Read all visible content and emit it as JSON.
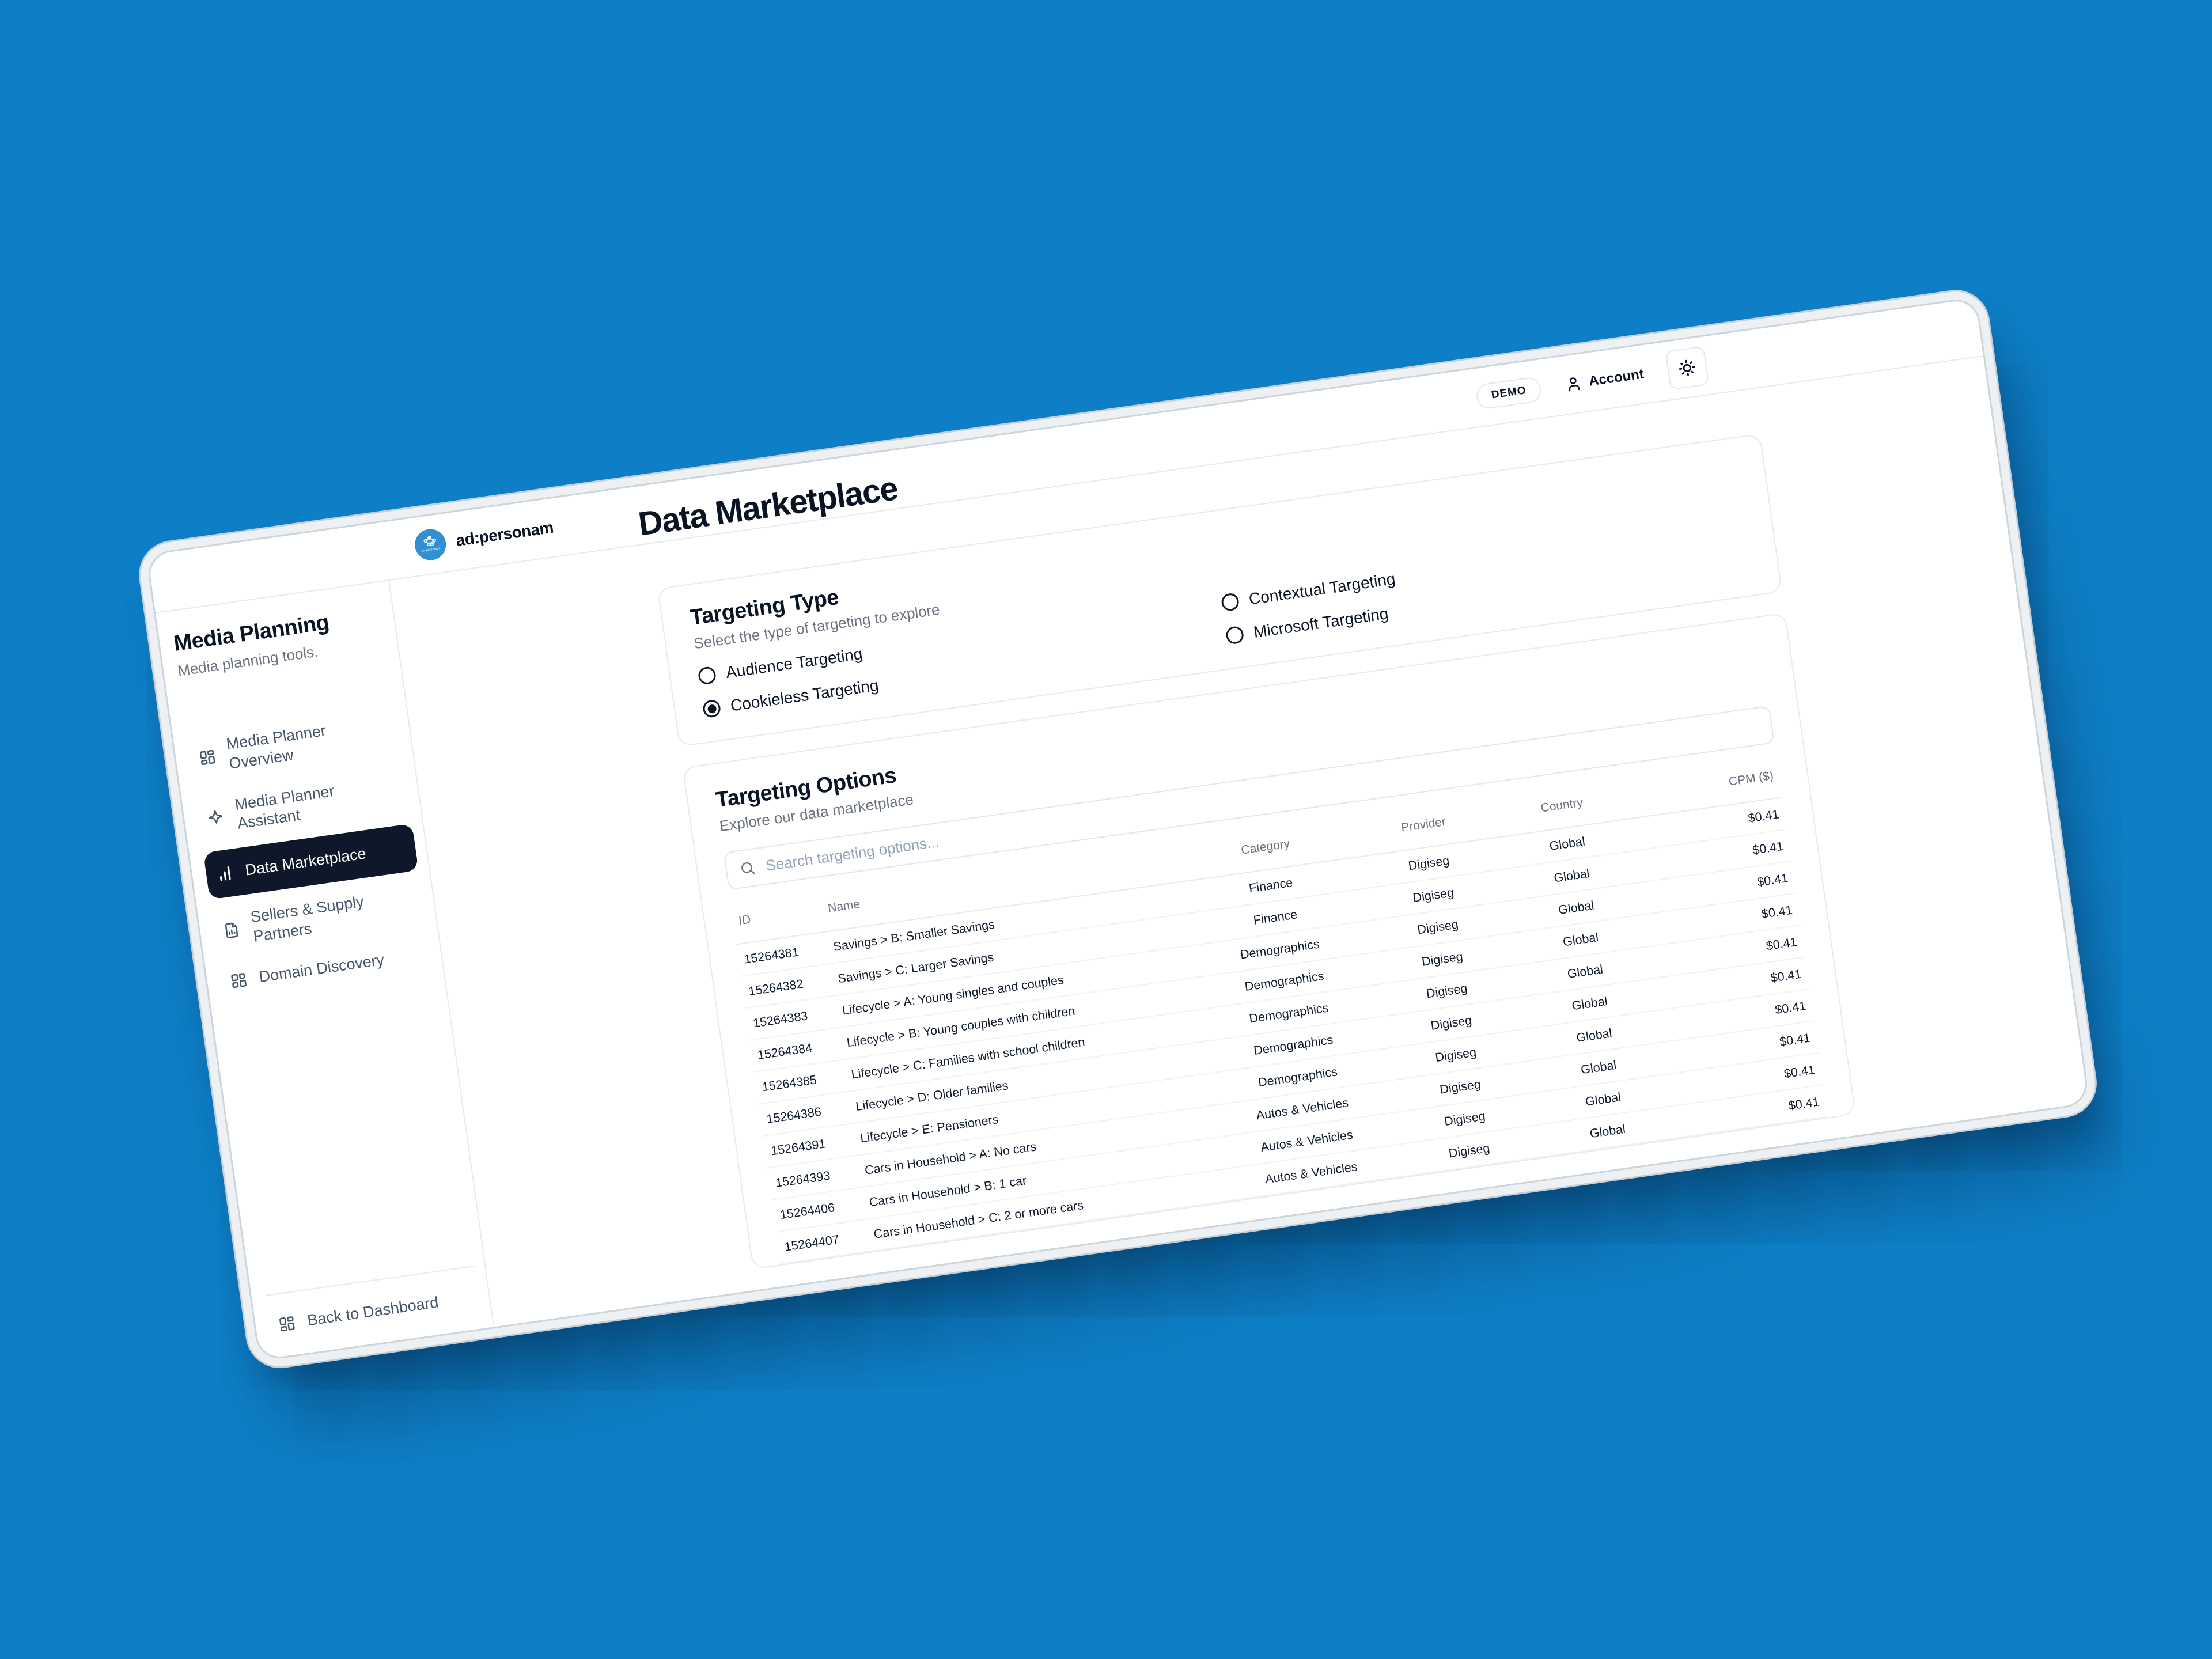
{
  "colors": {
    "background": "#0e7fc7",
    "card_bg": "#ffffff",
    "active_item_bg": "#0f172a",
    "logo_blue": "#2f91d3",
    "muted_text": "#6b7280"
  },
  "brand": {
    "name": "ad:personam",
    "logo_text": "ad:personam"
  },
  "header": {
    "page_title": "Data Marketplace",
    "demo_badge": "DEMO",
    "account_label": "Account"
  },
  "sidebar": {
    "title": "Media Planning",
    "subtitle": "Media planning tools.",
    "items": [
      {
        "label": "Media Planner Overview",
        "icon": "dashboard",
        "active": false
      },
      {
        "label": "Media Planner Assistant",
        "icon": "sparkle",
        "active": false
      },
      {
        "label": "Data Marketplace",
        "icon": "bar-chart",
        "active": true
      },
      {
        "label": "Sellers & Supply Partners",
        "icon": "file-chart",
        "active": false
      },
      {
        "label": "Domain Discovery",
        "icon": "grid",
        "active": false
      }
    ],
    "footer_label": "Back to Dashboard"
  },
  "targeting_type": {
    "title": "Targeting Type",
    "subtitle": "Select the type of targeting to explore",
    "options": [
      {
        "label": "Audience Targeting",
        "selected": false
      },
      {
        "label": "Cookieless Targeting",
        "selected": true
      },
      {
        "label": "Contextual Targeting",
        "selected": false
      },
      {
        "label": "Microsoft Targeting",
        "selected": false
      }
    ]
  },
  "targeting_options": {
    "title": "Targeting Options",
    "subtitle": "Explore our data marketplace",
    "search_placeholder": "Search targeting options...",
    "table": {
      "columns": [
        "ID",
        "Name",
        "Category",
        "Provider",
        "Country",
        "CPM ($)"
      ],
      "rows": [
        {
          "id": "15264381",
          "name": "Savings > B: Smaller Savings",
          "category": "Finance",
          "provider": "Digiseg",
          "country": "Global",
          "cpm": "$0.41"
        },
        {
          "id": "15264382",
          "name": "Savings > C: Larger Savings",
          "category": "Finance",
          "provider": "Digiseg",
          "country": "Global",
          "cpm": "$0.41"
        },
        {
          "id": "15264383",
          "name": "Lifecycle > A: Young singles and couples",
          "category": "Demographics",
          "provider": "Digiseg",
          "country": "Global",
          "cpm": "$0.41"
        },
        {
          "id": "15264384",
          "name": "Lifecycle > B: Young couples with children",
          "category": "Demographics",
          "provider": "Digiseg",
          "country": "Global",
          "cpm": "$0.41"
        },
        {
          "id": "15264385",
          "name": "Lifecycle > C: Families with school children",
          "category": "Demographics",
          "provider": "Digiseg",
          "country": "Global",
          "cpm": "$0.41"
        },
        {
          "id": "15264386",
          "name": "Lifecycle > D: Older families",
          "category": "Demographics",
          "provider": "Digiseg",
          "country": "Global",
          "cpm": "$0.41"
        },
        {
          "id": "15264391",
          "name": "Lifecycle > E: Pensioners",
          "category": "Demographics",
          "provider": "Digiseg",
          "country": "Global",
          "cpm": "$0.41"
        },
        {
          "id": "15264393",
          "name": "Cars in Household > A: No cars",
          "category": "Autos & Vehicles",
          "provider": "Digiseg",
          "country": "Global",
          "cpm": "$0.41"
        },
        {
          "id": "15264406",
          "name": "Cars in Household > B: 1 car",
          "category": "Autos & Vehicles",
          "provider": "Digiseg",
          "country": "Global",
          "cpm": "$0.41"
        },
        {
          "id": "15264407",
          "name": "Cars in Household > C: 2 or more cars",
          "category": "Autos & Vehicles",
          "provider": "Digiseg",
          "country": "Global",
          "cpm": "$0.41"
        }
      ]
    }
  }
}
